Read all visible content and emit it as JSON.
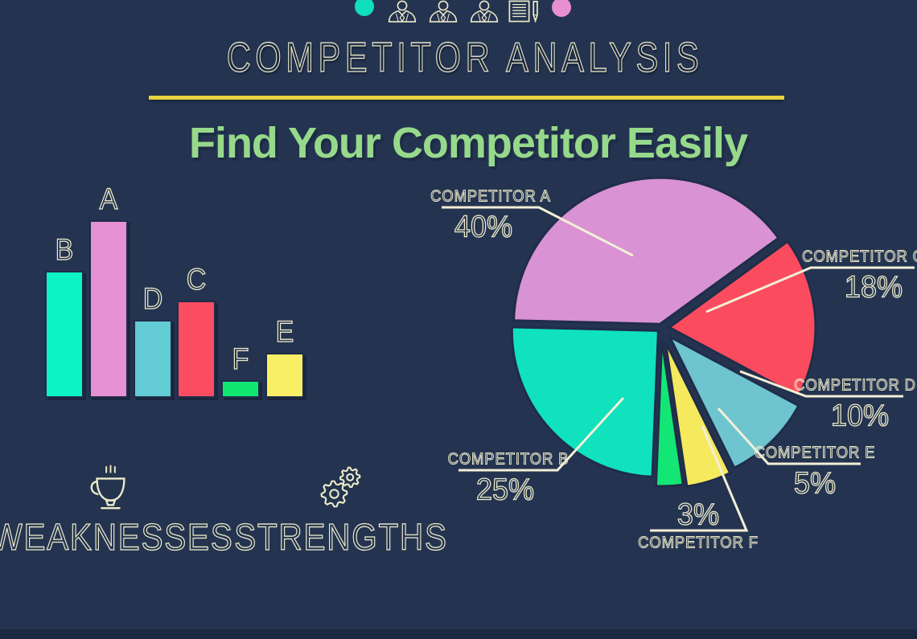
{
  "header": {
    "title": "COMPETITOR ANALYSIS",
    "subtitle": "Find Your Competitor Easily",
    "icons": [
      "teal-dot",
      "businessperson",
      "businessperson",
      "businessperson",
      "document-and-pen",
      "pink-dot"
    ]
  },
  "footer": {
    "weaknesses_label": "WEAKNESSES",
    "weaknesses_icon": "coffee-cup",
    "strengths_label": "STRENGTHS",
    "strengths_icon": "gears"
  },
  "colors": {
    "background": "#243450",
    "background_deep": "#1b2940",
    "cream_text": "#efeccb",
    "divider_yellow": "#e8d43e",
    "subtitle_green": "#97d98b",
    "leader_line": "#f3efd7",
    "competitor_a_pink": "#d992d3",
    "competitor_b_teal": "#0fe2bd",
    "competitor_c_red": "#fb4b5e",
    "competitor_d_blue": "#6ec4cf",
    "competitor_e_yellow": "#f5e95d",
    "competitor_f_green": "#13e675"
  },
  "chart_data": [
    {
      "type": "bar",
      "title": "",
      "categories": [
        "B",
        "A",
        "D",
        "C",
        "F",
        "E"
      ],
      "values": [
        158,
        221,
        97,
        121,
        22,
        56
      ],
      "units": "pixel-height (no axis shown, qualitative ranking A>B>C>D>E>F)",
      "colors": [
        "#0df2c2",
        "#e591d4",
        "#62cbd4",
        "#fb4d62",
        "#11e673",
        "#f8ef67"
      ],
      "xlabel": "",
      "ylabel": "",
      "grid": false,
      "axes_shown": false
    },
    {
      "type": "pie",
      "title": "",
      "labels": [
        "COMPETITOR A",
        "COMPETITOR B",
        "COMPETITOR C",
        "COMPETITOR D",
        "COMPETITOR E",
        "COMPETITOR F"
      ],
      "values": [
        40,
        25,
        18,
        10,
        5,
        3
      ],
      "value_labels": [
        "40%",
        "25%",
        "18%",
        "10%",
        "5%",
        "3%"
      ],
      "colors": [
        "#d992d3",
        "#0fe2bd",
        "#fb4b5e",
        "#6ec4cf",
        "#f5e95d",
        "#13e675"
      ],
      "start_angle_deg": -36,
      "order_clockwise": [
        "C",
        "D",
        "E",
        "F",
        "B",
        "A"
      ],
      "style": "exploded slices with cream leader-line labels",
      "legend_position": "around-pie"
    }
  ]
}
